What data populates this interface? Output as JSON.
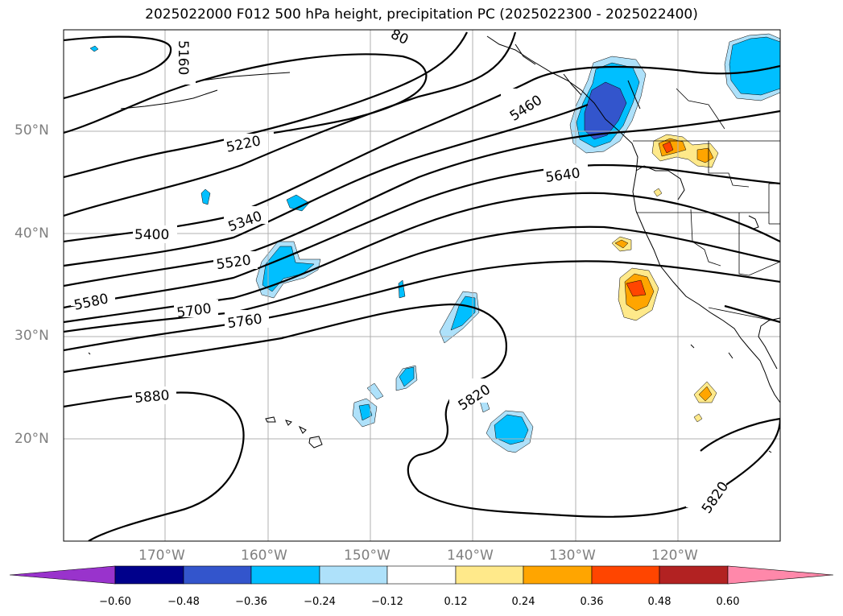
{
  "title": "2025022000 F012 500 hPa height, precipitation PC (2025022300 - 2025022400)",
  "lat_labels": [
    "50°N",
    "40°N",
    "30°N",
    "20°N"
  ],
  "lon_labels": [
    "170°W",
    "160°W",
    "150°W",
    "140°W",
    "130°W",
    "120°W"
  ],
  "colorbar": {
    "ticks": [
      "−0.60",
      "−0.48",
      "−0.36",
      "−0.24",
      "−0.12",
      "0.12",
      "0.24",
      "0.36",
      "0.48",
      "0.60"
    ],
    "colors": [
      "#9933cc",
      "#00008b",
      "#3355cc",
      "#00bfff",
      "#aee1fa",
      "#ffffff",
      "#ffe98a",
      "#ffa500",
      "#ff4500",
      "#b22222",
      "#ff88aa"
    ]
  },
  "contour_labels": [
    "5160",
    "5220",
    "5340",
    "5400",
    "5460",
    "5520",
    "5580",
    "5640",
    "5700",
    "5760",
    "5820",
    "5880",
    "5820",
    "5820",
    "80"
  ],
  "colors": {
    "contour": "#000000",
    "coast": "#000000",
    "grid": "#b0b0b0",
    "axis_label": "#7f7f7f"
  }
}
